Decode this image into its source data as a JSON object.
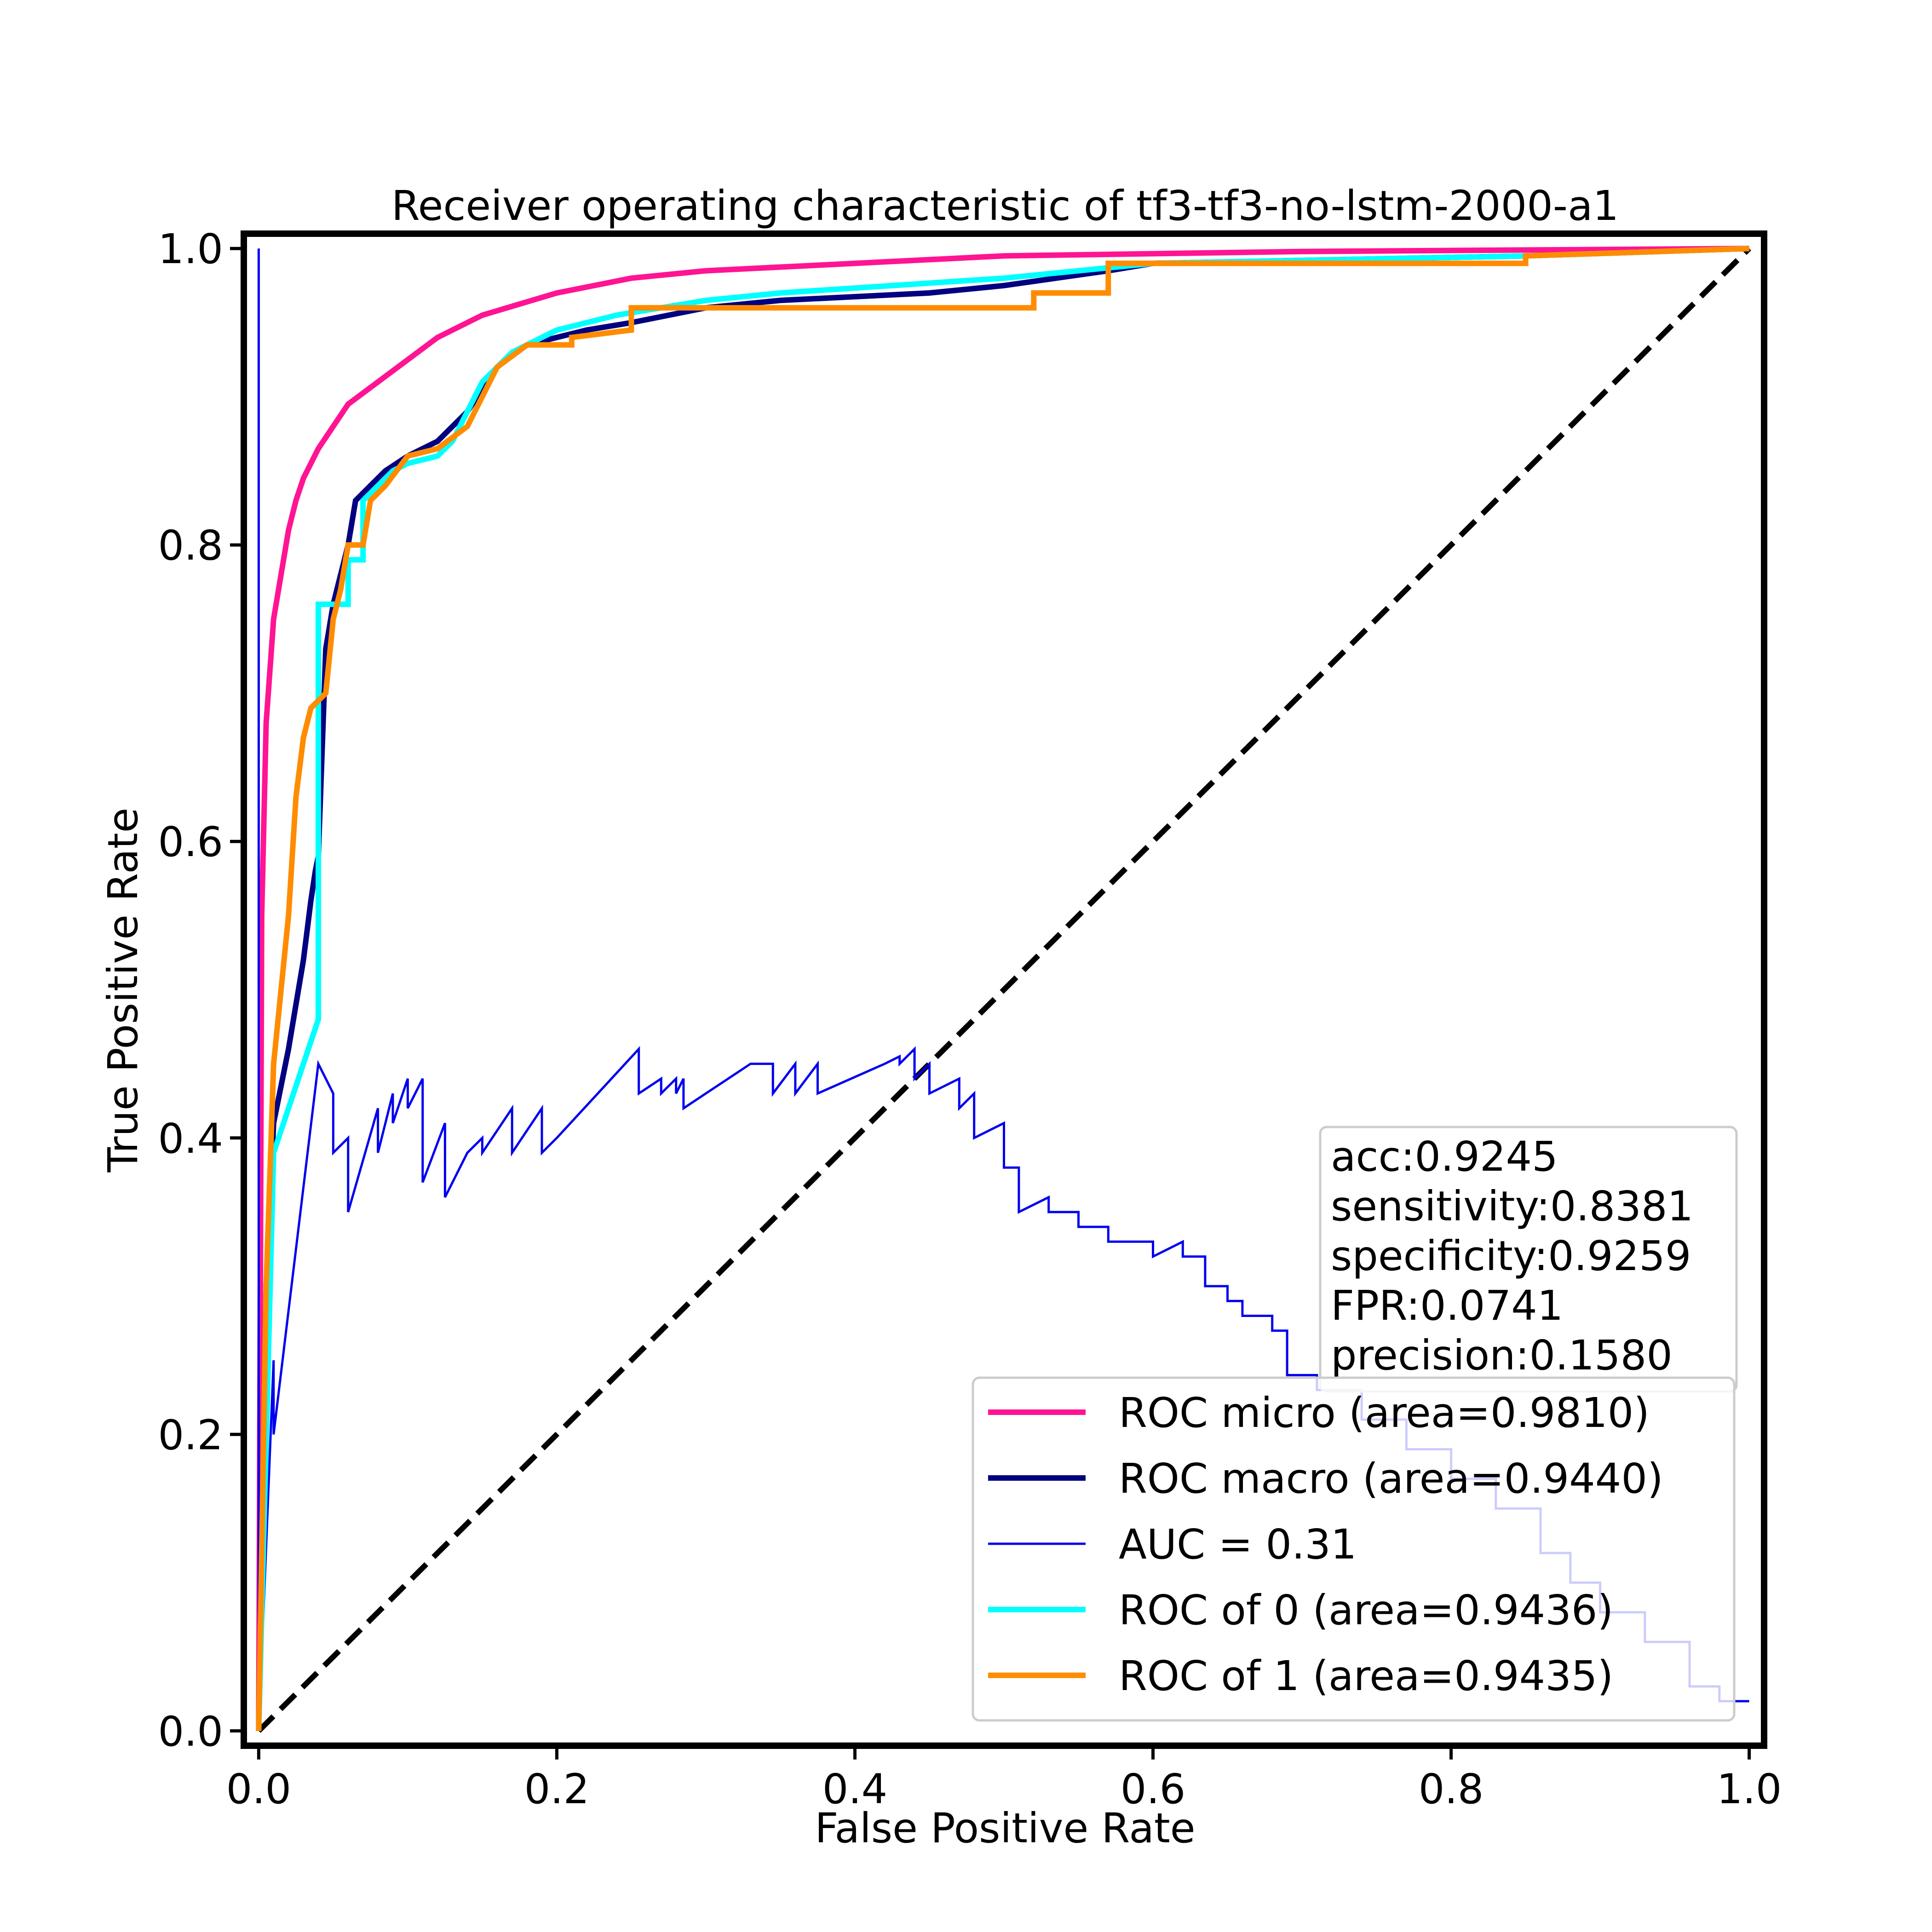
{
  "chart_data": {
    "type": "line",
    "title": "Receiver operating characteristic of tf3-tf3-no-lstm-2000-a1",
    "xlabel": "False Positive Rate",
    "ylabel": "True Positive Rate",
    "xlim": [
      -0.01,
      1.01
    ],
    "ylim": [
      -0.01,
      1.01
    ],
    "x_ticks": [
      "0.0",
      "0.2",
      "0.4",
      "0.6",
      "0.8",
      "1.0"
    ],
    "y_ticks": [
      "0.0",
      "0.2",
      "0.4",
      "0.6",
      "0.8",
      "1.0"
    ],
    "grid": false,
    "legend_position": "lower-right",
    "stats": [
      "acc:0.9245",
      "sensitivity:0.8381",
      "specificity:0.9259",
      "FPR:0.0741",
      "precision:0.1580"
    ],
    "series": [
      {
        "name": "ROC micro (area=0.9810)",
        "color": "#ff1493",
        "width": "thick",
        "points": [
          [
            0,
            0
          ],
          [
            0.002,
            0.55
          ],
          [
            0.005,
            0.68
          ],
          [
            0.01,
            0.75
          ],
          [
            0.015,
            0.78
          ],
          [
            0.02,
            0.81
          ],
          [
            0.025,
            0.83
          ],
          [
            0.03,
            0.845
          ],
          [
            0.04,
            0.865
          ],
          [
            0.05,
            0.88
          ],
          [
            0.06,
            0.895
          ],
          [
            0.08,
            0.91
          ],
          [
            0.1,
            0.925
          ],
          [
            0.12,
            0.94
          ],
          [
            0.15,
            0.955
          ],
          [
            0.2,
            0.97
          ],
          [
            0.25,
            0.98
          ],
          [
            0.3,
            0.985
          ],
          [
            0.4,
            0.99
          ],
          [
            0.5,
            0.995
          ],
          [
            0.7,
            0.998
          ],
          [
            1.0,
            1.0
          ]
        ]
      },
      {
        "name": "ROC macro (area=0.9440)",
        "color": "#000080",
        "width": "thick",
        "points": [
          [
            0,
            0
          ],
          [
            0.005,
            0.3
          ],
          [
            0.01,
            0.41
          ],
          [
            0.02,
            0.46
          ],
          [
            0.03,
            0.52
          ],
          [
            0.035,
            0.56
          ],
          [
            0.038,
            0.58
          ],
          [
            0.04,
            0.59
          ],
          [
            0.045,
            0.73
          ],
          [
            0.05,
            0.76
          ],
          [
            0.06,
            0.8
          ],
          [
            0.065,
            0.83
          ],
          [
            0.075,
            0.84
          ],
          [
            0.085,
            0.85
          ],
          [
            0.1,
            0.86
          ],
          [
            0.12,
            0.87
          ],
          [
            0.14,
            0.89
          ],
          [
            0.16,
            0.92
          ],
          [
            0.18,
            0.935
          ],
          [
            0.2,
            0.94
          ],
          [
            0.22,
            0.945
          ],
          [
            0.25,
            0.95
          ],
          [
            0.3,
            0.96
          ],
          [
            0.35,
            0.965
          ],
          [
            0.45,
            0.97
          ],
          [
            0.5,
            0.975
          ],
          [
            0.57,
            0.985
          ],
          [
            0.6,
            0.99
          ],
          [
            0.85,
            0.995
          ],
          [
            1.0,
            1.0
          ]
        ]
      },
      {
        "name": "AUC = 0.31",
        "color": "#0000ee",
        "width": "thin",
        "points": [
          [
            0,
            0
          ],
          [
            0,
            1.0
          ],
          [
            0,
            0
          ],
          [
            0.01,
            0.25
          ],
          [
            0.01,
            0.2
          ],
          [
            0.04,
            0.45
          ],
          [
            0.05,
            0.43
          ],
          [
            0.05,
            0.39
          ],
          [
            0.06,
            0.4
          ],
          [
            0.06,
            0.35
          ],
          [
            0.08,
            0.42
          ],
          [
            0.08,
            0.39
          ],
          [
            0.09,
            0.43
          ],
          [
            0.09,
            0.41
          ],
          [
            0.1,
            0.44
          ],
          [
            0.1,
            0.42
          ],
          [
            0.11,
            0.44
          ],
          [
            0.11,
            0.37
          ],
          [
            0.125,
            0.41
          ],
          [
            0.125,
            0.36
          ],
          [
            0.14,
            0.39
          ],
          [
            0.15,
            0.4
          ],
          [
            0.15,
            0.39
          ],
          [
            0.17,
            0.42
          ],
          [
            0.17,
            0.39
          ],
          [
            0.19,
            0.42
          ],
          [
            0.19,
            0.39
          ],
          [
            0.2,
            0.4
          ],
          [
            0.255,
            0.46
          ],
          [
            0.255,
            0.43
          ],
          [
            0.27,
            0.44
          ],
          [
            0.27,
            0.43
          ],
          [
            0.28,
            0.44
          ],
          [
            0.28,
            0.43
          ],
          [
            0.285,
            0.44
          ],
          [
            0.285,
            0.42
          ],
          [
            0.33,
            0.45
          ],
          [
            0.345,
            0.45
          ],
          [
            0.345,
            0.43
          ],
          [
            0.36,
            0.45
          ],
          [
            0.36,
            0.43
          ],
          [
            0.375,
            0.45
          ],
          [
            0.375,
            0.43
          ],
          [
            0.42,
            0.45
          ],
          [
            0.42,
            0.45
          ],
          [
            0.43,
            0.455
          ],
          [
            0.43,
            0.45
          ],
          [
            0.44,
            0.46
          ],
          [
            0.44,
            0.44
          ],
          [
            0.45,
            0.45
          ],
          [
            0.45,
            0.43
          ],
          [
            0.47,
            0.44
          ],
          [
            0.47,
            0.42
          ],
          [
            0.48,
            0.43
          ],
          [
            0.48,
            0.4
          ],
          [
            0.5,
            0.41
          ],
          [
            0.5,
            0.38
          ],
          [
            0.51,
            0.38
          ],
          [
            0.51,
            0.35
          ],
          [
            0.53,
            0.36
          ],
          [
            0.53,
            0.35
          ],
          [
            0.55,
            0.35
          ],
          [
            0.55,
            0.34
          ],
          [
            0.57,
            0.34
          ],
          [
            0.57,
            0.33
          ],
          [
            0.6,
            0.33
          ],
          [
            0.6,
            0.32
          ],
          [
            0.62,
            0.33
          ],
          [
            0.62,
            0.32
          ],
          [
            0.635,
            0.32
          ],
          [
            0.635,
            0.3
          ],
          [
            0.65,
            0.3
          ],
          [
            0.65,
            0.29
          ],
          [
            0.66,
            0.29
          ],
          [
            0.66,
            0.28
          ],
          [
            0.68,
            0.28
          ],
          [
            0.68,
            0.27
          ],
          [
            0.69,
            0.27
          ],
          [
            0.69,
            0.24
          ],
          [
            0.71,
            0.24
          ],
          [
            0.71,
            0.23
          ],
          [
            0.74,
            0.23
          ],
          [
            0.74,
            0.21
          ],
          [
            0.77,
            0.21
          ],
          [
            0.77,
            0.19
          ],
          [
            0.8,
            0.19
          ],
          [
            0.8,
            0.17
          ],
          [
            0.83,
            0.17
          ],
          [
            0.83,
            0.15
          ],
          [
            0.86,
            0.15
          ],
          [
            0.86,
            0.12
          ],
          [
            0.88,
            0.12
          ],
          [
            0.88,
            0.1
          ],
          [
            0.9,
            0.1
          ],
          [
            0.9,
            0.08
          ],
          [
            0.93,
            0.08
          ],
          [
            0.93,
            0.06
          ],
          [
            0.96,
            0.06
          ],
          [
            0.96,
            0.03
          ],
          [
            0.98,
            0.03
          ],
          [
            0.98,
            0.02
          ],
          [
            1.0,
            0.02
          ]
        ]
      },
      {
        "name": "ROC of 0 (area=0.9436)",
        "color": "#00ffff",
        "width": "thick",
        "points": [
          [
            0,
            0
          ],
          [
            0.01,
            0.39
          ],
          [
            0.03,
            0.45
          ],
          [
            0.04,
            0.48
          ],
          [
            0.04,
            0.7
          ],
          [
            0.04,
            0.76
          ],
          [
            0.06,
            0.76
          ],
          [
            0.06,
            0.79
          ],
          [
            0.07,
            0.79
          ],
          [
            0.07,
            0.83
          ],
          [
            0.08,
            0.84
          ],
          [
            0.09,
            0.85
          ],
          [
            0.1,
            0.855
          ],
          [
            0.12,
            0.86
          ],
          [
            0.13,
            0.87
          ],
          [
            0.14,
            0.89
          ],
          [
            0.15,
            0.91
          ],
          [
            0.17,
            0.93
          ],
          [
            0.2,
            0.945
          ],
          [
            0.24,
            0.955
          ],
          [
            0.3,
            0.965
          ],
          [
            0.35,
            0.97
          ],
          [
            0.5,
            0.98
          ],
          [
            0.6,
            0.99
          ],
          [
            0.85,
            0.995
          ],
          [
            1.0,
            1.0
          ]
        ]
      },
      {
        "name": "ROC of 1 (area=0.9435)",
        "color": "#ff8c00",
        "width": "thick",
        "points": [
          [
            0,
            0
          ],
          [
            0.005,
            0.3
          ],
          [
            0.01,
            0.45
          ],
          [
            0.015,
            0.5
          ],
          [
            0.02,
            0.55
          ],
          [
            0.025,
            0.63
          ],
          [
            0.03,
            0.67
          ],
          [
            0.035,
            0.69
          ],
          [
            0.045,
            0.7
          ],
          [
            0.05,
            0.75
          ],
          [
            0.055,
            0.77
          ],
          [
            0.06,
            0.8
          ],
          [
            0.07,
            0.8
          ],
          [
            0.075,
            0.83
          ],
          [
            0.085,
            0.84
          ],
          [
            0.1,
            0.86
          ],
          [
            0.12,
            0.865
          ],
          [
            0.14,
            0.88
          ],
          [
            0.16,
            0.92
          ],
          [
            0.18,
            0.935
          ],
          [
            0.21,
            0.935
          ],
          [
            0.21,
            0.94
          ],
          [
            0.25,
            0.945
          ],
          [
            0.25,
            0.96
          ],
          [
            0.52,
            0.96
          ],
          [
            0.52,
            0.97
          ],
          [
            0.57,
            0.97
          ],
          [
            0.57,
            0.99
          ],
          [
            0.85,
            0.99
          ],
          [
            0.85,
            0.995
          ],
          [
            1.0,
            1.0
          ]
        ]
      }
    ],
    "reference_line": {
      "points": [
        [
          0,
          0
        ],
        [
          1,
          1
        ]
      ],
      "color": "#000000",
      "style": "dashed"
    }
  }
}
